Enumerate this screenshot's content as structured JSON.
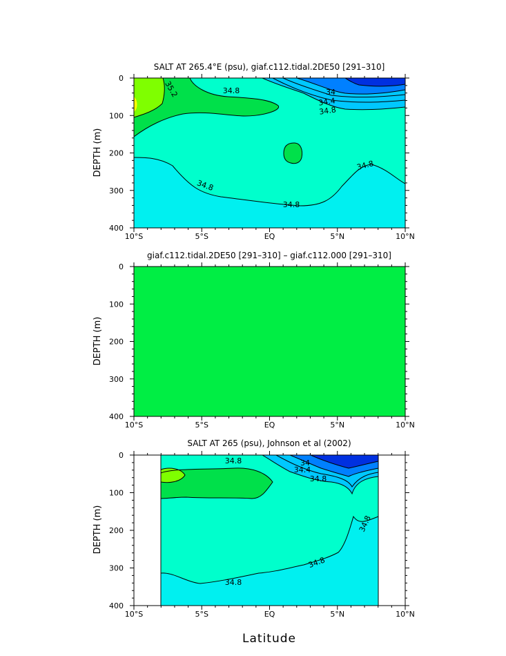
{
  "colors": {
    "fill_34_8_to_35_0": "#00FFCC",
    "fill_35_0_to_35_2": "#00E04A",
    "fill_gt_35_2": "#7FFF00",
    "fill_max": "#FFFF00",
    "fill_lt_34_8": "#00F0F0",
    "fill_34_4_to_34_8": "#00C8FF",
    "fill_34_0_to_34_4": "#0080FF",
    "fill_lt_34": "#0030E0",
    "difference_fill": "#00EE44"
  },
  "xlabel": "Latitude",
  "chart_data": [
    {
      "type": "heatmap",
      "title": "SALT AT 265.4°E (psu), giaf.c112.tidal.2DE50 [291–310]",
      "ylabel": "DEPTH (m)",
      "x_ticks": [
        "10°S",
        "5°S",
        "EQ",
        "5°N",
        "10°N"
      ],
      "y_ticks": [
        "0",
        "100",
        "200",
        "300",
        "400"
      ],
      "xlim": [
        -10,
        10
      ],
      "ylim": [
        400,
        0
      ],
      "contour_labels": [
        "34.8",
        "34.8",
        "34",
        "34.4",
        "34.8",
        "35.2",
        "34.8",
        "34.8",
        "34.8"
      ]
    },
    {
      "type": "heatmap",
      "title": "giaf.c112.tidal.2DE50 [291–310] – giaf.c112.000 [291–310]",
      "ylabel": "DEPTH (m)",
      "x_ticks": [
        "10°S",
        "5°S",
        "EQ",
        "5°N",
        "10°N"
      ],
      "y_ticks": [
        "0",
        "100",
        "200",
        "300",
        "400"
      ],
      "xlim": [
        -10,
        10
      ],
      "ylim": [
        400,
        0
      ],
      "contour_labels": []
    },
    {
      "type": "heatmap",
      "title": "SALT AT 265 (psu), Johnson et al (2002)",
      "ylabel": "DEPTH (m)",
      "x_ticks": [
        "10°S",
        "5°S",
        "EQ",
        "5°N",
        "10°N"
      ],
      "y_ticks": [
        "0",
        "100",
        "200",
        "300",
        "400"
      ],
      "xlim": [
        -10,
        10
      ],
      "ylim": [
        400,
        0
      ],
      "data_xrange": [
        -8,
        8
      ],
      "contour_labels": [
        "34.8",
        "34",
        "34.4",
        "34.8",
        "34.8",
        "34.8",
        "34.8"
      ]
    }
  ]
}
